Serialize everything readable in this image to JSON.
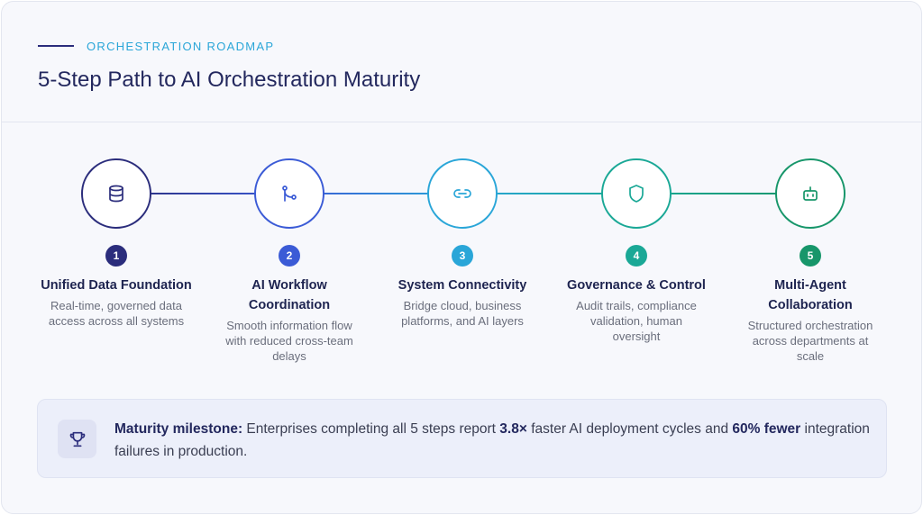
{
  "header": {
    "eyebrow": "ORCHESTRATION ROADMAP",
    "title": "5-Step Path to AI Orchestration Maturity"
  },
  "steps": [
    {
      "number": "1",
      "title_lines": [
        "Unified Data Foundation"
      ],
      "description_lines": [
        "Real-time, governed data",
        "access across all systems"
      ],
      "color": "#2b2d7c"
    },
    {
      "number": "2",
      "title_lines": [
        "AI Workflow",
        "Coordination"
      ],
      "description_lines": [
        "Smooth information flow",
        "with reduced cross-team",
        "delays"
      ],
      "color": "#3b5bd6"
    },
    {
      "number": "3",
      "title_lines": [
        "System Connectivity"
      ],
      "description_lines": [
        "Bridge cloud, business",
        "platforms, and AI layers"
      ],
      "color": "#2aa6d8"
    },
    {
      "number": "4",
      "title_lines": [
        "Governance & Control"
      ],
      "description_lines": [
        "Audit trails, compliance",
        "validation, human",
        "oversight"
      ],
      "color": "#1aa896"
    },
    {
      "number": "5",
      "title_lines": [
        "Multi-Agent",
        "Collaboration"
      ],
      "description_lines": [
        "Structured orchestration",
        "across departments at",
        "scale"
      ],
      "color": "#17966a"
    }
  ],
  "milestone": {
    "label": "Maturity milestone:",
    "segments": [
      "Enterprises completing all 5 steps report",
      "3.8×",
      "faster AI deployment cycles and",
      "60% fewer",
      "integration failures in production."
    ]
  }
}
